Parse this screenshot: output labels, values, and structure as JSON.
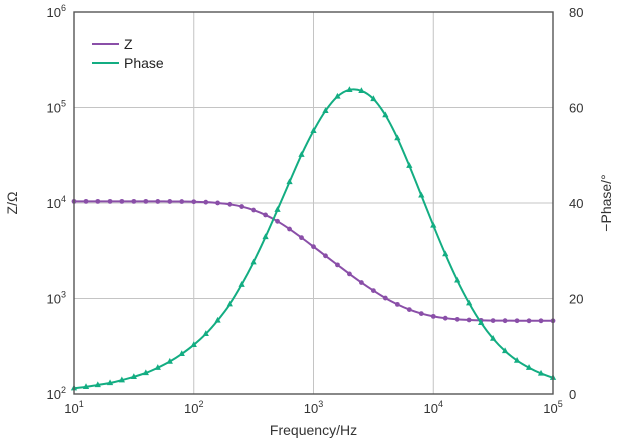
{
  "chart_data": {
    "type": "line",
    "title": "",
    "xlabel": "Frequency/Hz",
    "ylabel_left": "Z/Ω",
    "ylabel_right": "−Phase/°",
    "x_scale": "log",
    "x_range": [
      10,
      100000
    ],
    "y_left_scale": "log",
    "y_left_range": [
      100,
      1000000
    ],
    "y_right_range": [
      0,
      80
    ],
    "grid": true,
    "legend_position": "top-left",
    "x_ticks": [
      {
        "base": "10",
        "exp": "1"
      },
      {
        "base": "10",
        "exp": "2"
      },
      {
        "base": "10",
        "exp": "3"
      },
      {
        "base": "10",
        "exp": "4"
      },
      {
        "base": "10",
        "exp": "5"
      }
    ],
    "y_left_ticks": [
      {
        "base": "10",
        "exp": "2"
      },
      {
        "base": "10",
        "exp": "3"
      },
      {
        "base": "10",
        "exp": "4"
      },
      {
        "base": "10",
        "exp": "5"
      },
      {
        "base": "10",
        "exp": "6"
      }
    ],
    "y_right_ticks": [
      "0",
      "20",
      "40",
      "60",
      "80"
    ],
    "colors": {
      "z": "#8a4fa8",
      "phase": "#13ad82",
      "grid": "#c4c4c4",
      "frame": "#555555"
    },
    "series": [
      {
        "name": "Z",
        "axis": "left",
        "marker": "circle",
        "x": [
          10,
          12.6,
          15.8,
          20,
          25.1,
          31.6,
          39.8,
          50.1,
          63.1,
          79.4,
          100,
          126,
          158,
          200,
          251,
          316,
          398,
          501,
          631,
          794,
          1000,
          1259,
          1585,
          1995,
          2512,
          3162,
          3981,
          5012,
          6310,
          7943,
          10000,
          12589,
          15849,
          19953,
          25119,
          31623,
          39811,
          50119,
          63096,
          79433,
          100000
        ],
        "values": [
          10400,
          10400,
          10400,
          10400,
          10400,
          10400,
          10400,
          10390,
          10380,
          10360,
          10310,
          10200,
          10010,
          9690,
          9180,
          8440,
          7500,
          6430,
          5340,
          4340,
          3490,
          2800,
          2250,
          1810,
          1470,
          1210,
          1010,
          868,
          765,
          695,
          650,
          622,
          605,
          596,
          590,
          587,
          586,
          585,
          584,
          584,
          584
        ]
      },
      {
        "name": "Phase",
        "axis": "right",
        "marker": "triangle",
        "x": [
          10,
          12.6,
          15.8,
          20,
          25.1,
          31.6,
          39.8,
          50.1,
          63.1,
          79.4,
          100,
          126,
          158,
          200,
          251,
          316,
          398,
          501,
          631,
          794,
          1000,
          1259,
          1585,
          1995,
          2512,
          3162,
          3981,
          5012,
          6310,
          7943,
          10000,
          12589,
          15849,
          19953,
          25119,
          31623,
          39811,
          50119,
          63096,
          79433,
          100000
        ],
        "values": [
          1.2,
          1.5,
          1.9,
          2.3,
          2.9,
          3.6,
          4.4,
          5.5,
          6.8,
          8.4,
          10.3,
          12.6,
          15.4,
          18.8,
          22.9,
          27.6,
          32.9,
          38.6,
          44.4,
          50.1,
          55.1,
          59.3,
          62.3,
          63.7,
          63.5,
          61.8,
          58.4,
          53.6,
          47.8,
          41.6,
          35.3,
          29.3,
          23.8,
          19.0,
          14.9,
          11.6,
          9.0,
          7.0,
          5.5,
          4.3,
          3.4
        ]
      }
    ]
  }
}
